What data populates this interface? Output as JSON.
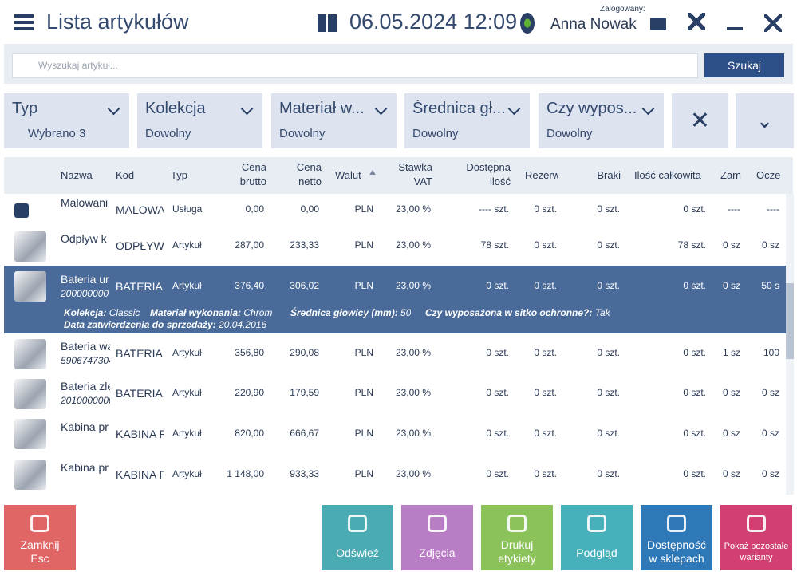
{
  "header": {
    "title": "Lista artykułów",
    "datetime": "06.05.2024 12:09",
    "logged_label": "Zalogowany:",
    "user": "Anna Nowak"
  },
  "search": {
    "placeholder": "Wyszukaj artykuł...",
    "button": "Szukaj"
  },
  "filters": [
    {
      "label": "Typ",
      "value": "Wybrano 3"
    },
    {
      "label": "Kolekcja",
      "value": "Dowolny"
    },
    {
      "label": "Materiał w...",
      "value": "Dowolny"
    },
    {
      "label": "Średnica gł...",
      "value": "Dowolny"
    },
    {
      "label": "Czy wypos...",
      "value": "Dowolny"
    }
  ],
  "table": {
    "columns": [
      [
        "Nazwa"
      ],
      [
        "Kod"
      ],
      [
        "Typ"
      ],
      [
        "Cena",
        "brutto"
      ],
      [
        "Cena",
        "netto"
      ],
      [
        "Walut"
      ],
      [
        "Stawka",
        "VAT"
      ],
      [
        "Dostępna",
        "ilość"
      ],
      [
        "Rezerw"
      ],
      [
        "Braki"
      ],
      [
        "Ilość całkowita"
      ],
      [
        "Zam"
      ],
      [
        "Ocze"
      ]
    ],
    "rows": [
      {
        "sub": null,
        "cells": [
          "Malowani",
          "MALOWA",
          "Usługa",
          "0,00",
          "0,00",
          "PLN",
          "23,00 %",
          "---- szt.",
          "0 szt.",
          "0 szt.",
          "0 szt.",
          "----",
          "----"
        ]
      },
      {
        "sub": null,
        "cells": [
          "Odpływ k",
          "ODPŁYW",
          "Artykuł",
          "287,00",
          "233,33",
          "PLN",
          "23,00 %",
          "78 szt.",
          "0 szt.",
          "0 szt.",
          "78 szt.",
          "0 sz",
          "0 sz"
        ]
      },
      {
        "sub": "200000000",
        "cells": [
          "Bateria ur",
          "BATERIA U",
          "Artykuł",
          "376,40",
          "306,02",
          "PLN",
          "23,00 %",
          "0 szt.",
          "0 szt.",
          "0 szt.",
          "0 szt.",
          "0 sz",
          "50 s"
        ],
        "details": [
          {
            "label": "Kolekcja:",
            "value": "Classic"
          },
          {
            "label": "Materiał wykonania:",
            "value": "Chrom"
          },
          {
            "label": "Średnica głowicy (mm):",
            "value": "50"
          },
          {
            "label": "Czy wyposażona w sitko ochronne?:",
            "value": "Tak"
          },
          {
            "label": "Data zatwierdzenia do sprzedaży:",
            "value": "20.04.2016"
          }
        ]
      },
      {
        "sub": "5906747304",
        "cells": [
          "Bateria wa",
          "BATERIA V",
          "Artykuł",
          "356,80",
          "290,08",
          "PLN",
          "23,00 %",
          "0 szt.",
          "0 szt.",
          "0 szt.",
          "0 szt.",
          "1 sz",
          "100"
        ]
      },
      {
        "sub": "2010000000",
        "cells": [
          "Bateria zle",
          "BATERIA Z",
          "Artykuł",
          "220,90",
          "179,59",
          "PLN",
          "23,00 %",
          "0 szt.",
          "0 szt.",
          "0 szt.",
          "0 szt.",
          "0 sz",
          "0 sz"
        ]
      },
      {
        "sub": null,
        "cells": [
          "Kabina pr",
          "KABINA P",
          "Artykuł",
          "820,00",
          "666,67",
          "PLN",
          "23,00 %",
          "0 szt.",
          "0 szt.",
          "0 szt.",
          "0 szt.",
          "0 sz",
          "0 sz"
        ]
      },
      {
        "sub": null,
        "cells": [
          "Kabina pr",
          "KABINA P",
          "Artykuł",
          "1 148,00",
          "933,33",
          "PLN",
          "23,00 %",
          "0 szt.",
          "0 szt.",
          "0 szt.",
          "0 szt.",
          "0 sz",
          "0 sz"
        ]
      }
    ]
  },
  "buttons": [
    [
      "Zamknij",
      "Esc"
    ],
    [
      "Odśwież"
    ],
    [
      "Zdjęcia"
    ],
    [
      "Drukuj",
      "etykiety"
    ],
    [
      "Podgląd"
    ],
    [
      "Dostępność",
      "w sklepach"
    ],
    [
      "Pokaż pozostałe",
      "warianty"
    ]
  ]
}
